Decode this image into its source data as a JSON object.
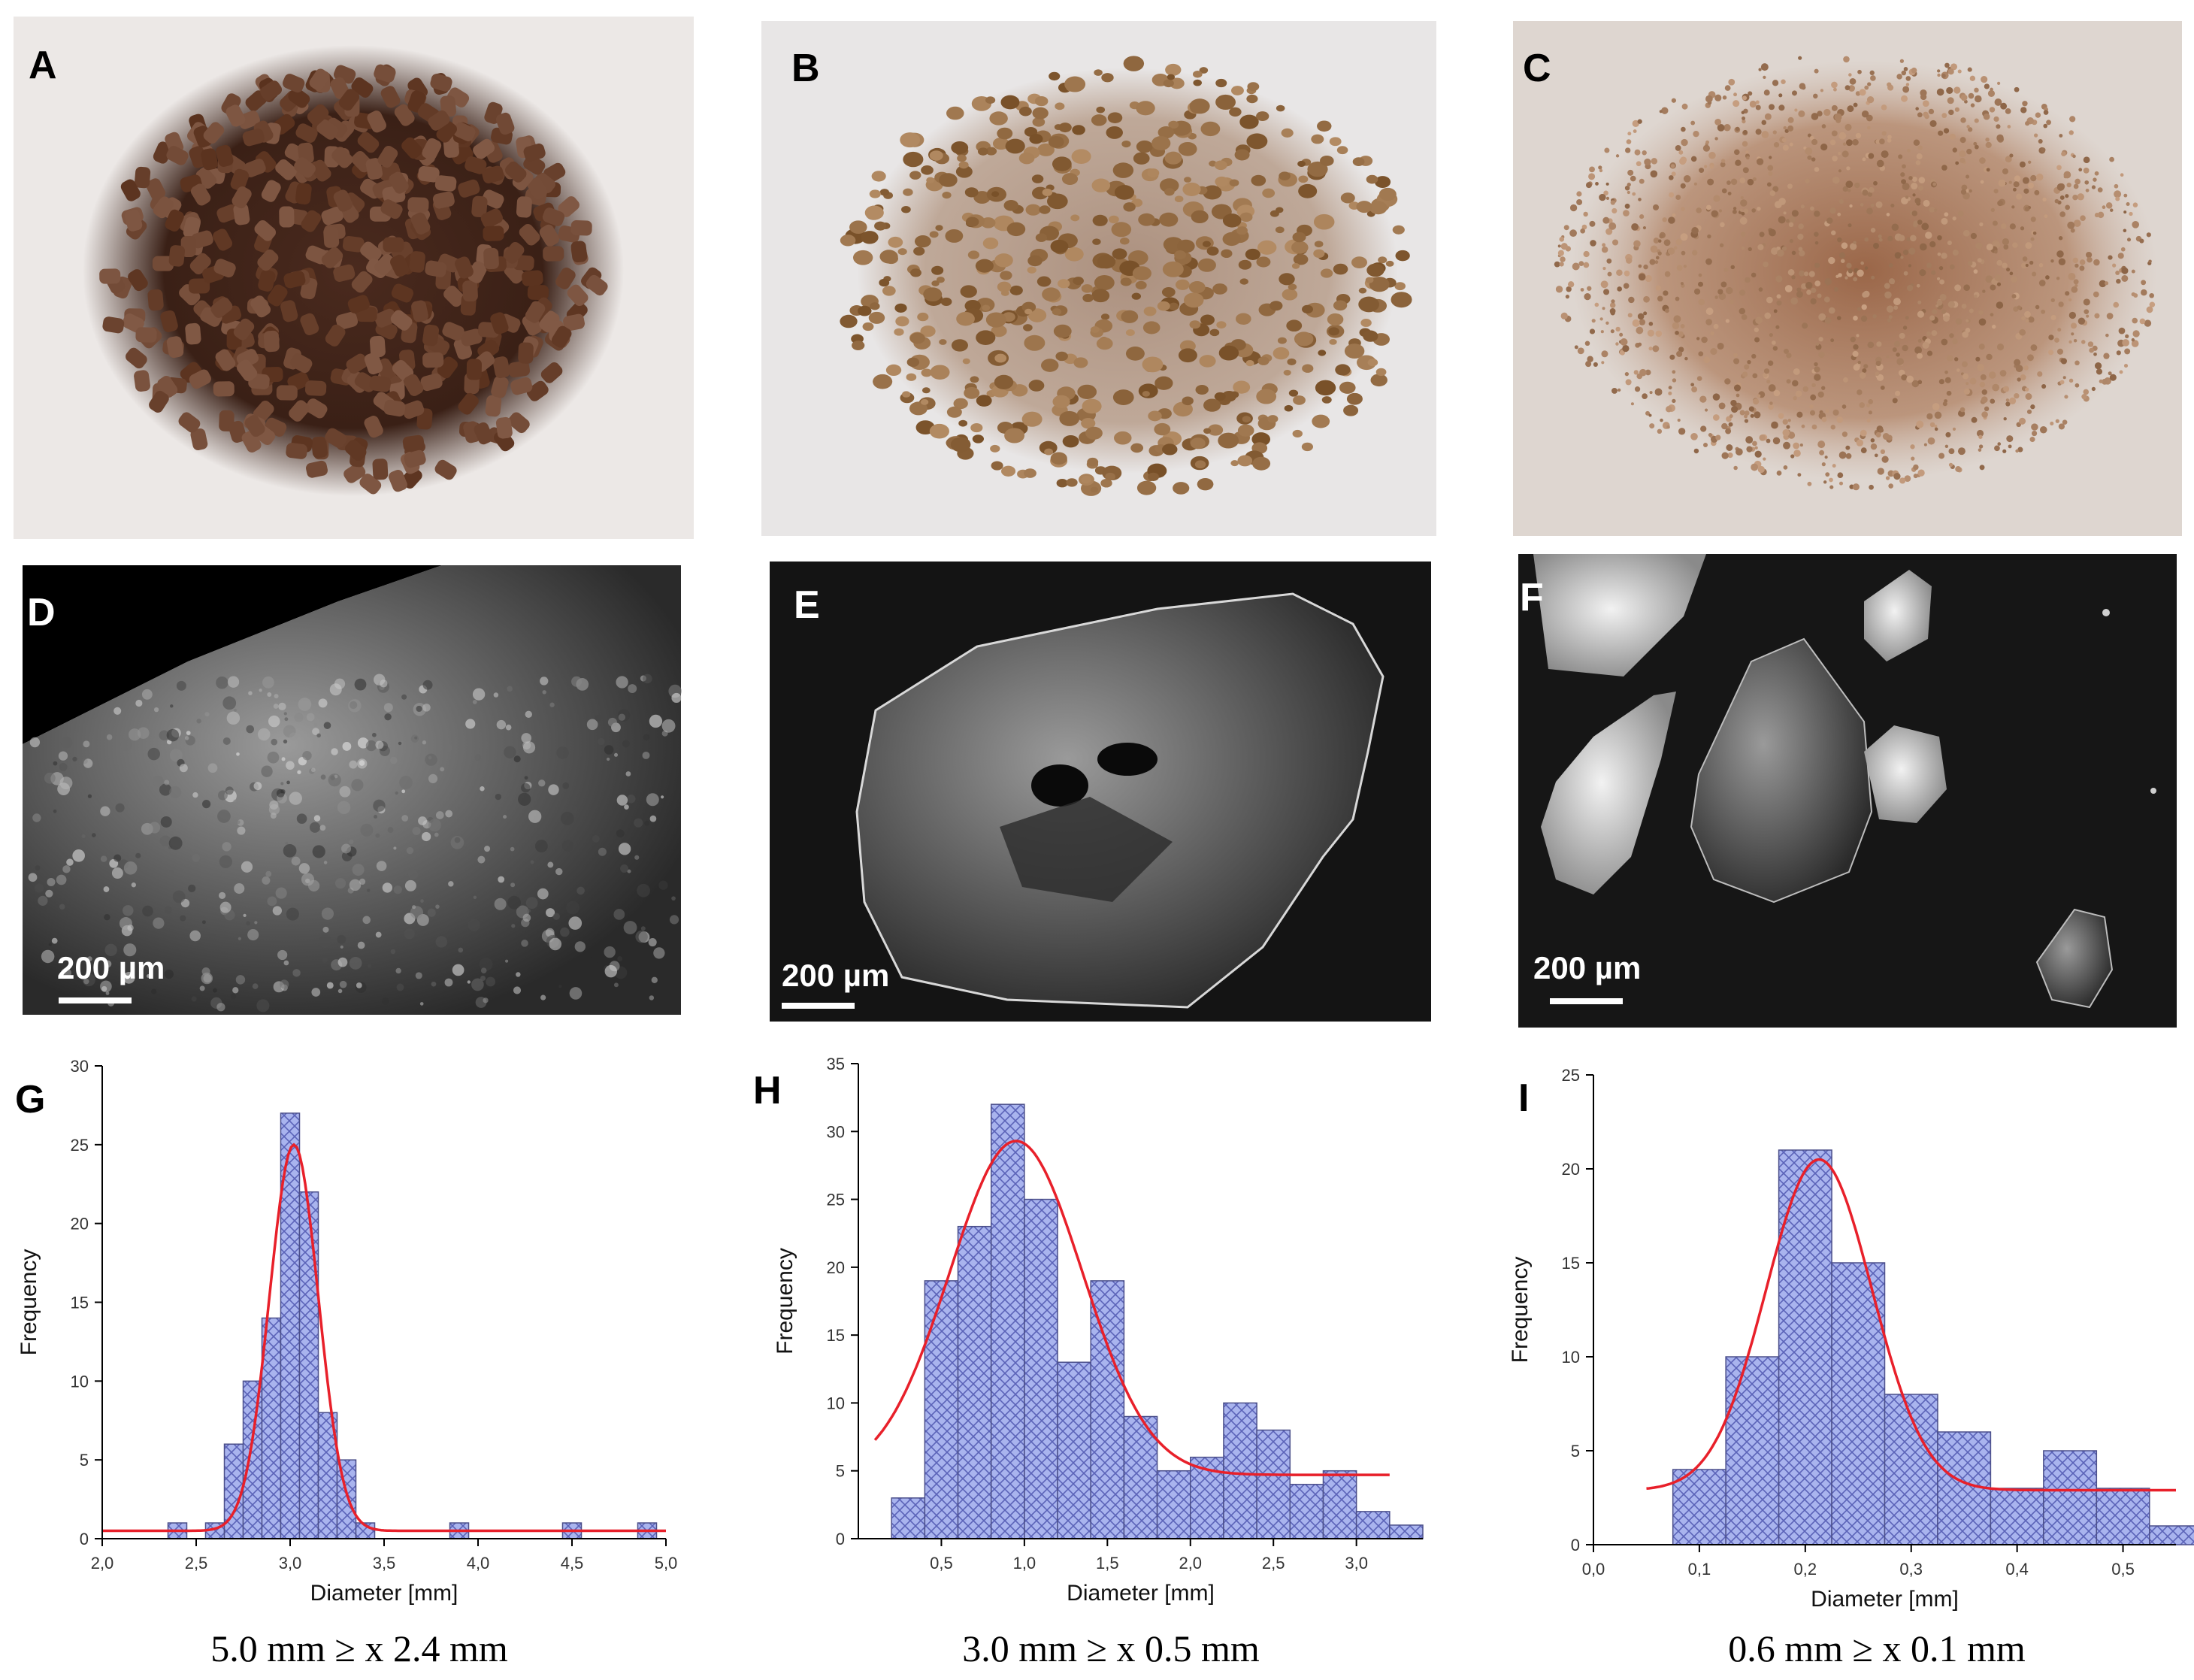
{
  "panel_labels": [
    "A",
    "B",
    "C",
    "D",
    "E",
    "F",
    "G",
    "H",
    "I"
  ],
  "scale_bars": {
    "D": "200 µm",
    "E": "200 µm",
    "F": "200 µm"
  },
  "captions": {
    "G": "5.0 mm ≥ x 2.4 mm",
    "H": "3.0 mm ≥ x 0.5 mm",
    "I": "0.6 mm ≥ x 0.1 mm"
  },
  "colors": {
    "bar_fill": "#a9b4ee",
    "bar_hatch": "#5b63b8",
    "fit_line": "#e8202a",
    "sem_background": "#141414",
    "photo_background": "#ece8e6"
  },
  "chart_data": [
    {
      "type": "bar",
      "panel": "G",
      "xlabel": "Diameter [mm]",
      "ylabel": "Frequency",
      "xlim": [
        2.0,
        5.0
      ],
      "ylim": [
        0,
        30
      ],
      "xticks": [
        "2,0",
        "2,5",
        "3,0",
        "3,5",
        "4,0",
        "4,5",
        "5,0"
      ],
      "yticks": [
        "0",
        "5",
        "10",
        "15",
        "20",
        "25",
        "30"
      ],
      "x": [
        2.4,
        2.6,
        2.7,
        2.8,
        2.9,
        3.0,
        3.1,
        3.2,
        3.3,
        3.4,
        3.9,
        4.5,
        4.9
      ],
      "bin_width": 0.1,
      "values": [
        1,
        1,
        6,
        10,
        14,
        27,
        22,
        8,
        5,
        1,
        1,
        1,
        1
      ],
      "fit": {
        "baseline": 0.5,
        "peak": 25,
        "center": 3.02,
        "width": 0.13
      }
    },
    {
      "type": "bar",
      "panel": "H",
      "xlabel": "Diameter [mm]",
      "ylabel": "Frequency",
      "xlim": [
        0.0,
        3.4
      ],
      "ylim": [
        0,
        35
      ],
      "xticks": [
        "0,5",
        "1,0",
        "1,5",
        "2,0",
        "2,5",
        "3,0"
      ],
      "yticks": [
        "0",
        "5",
        "10",
        "15",
        "20",
        "25",
        "30",
        "35"
      ],
      "x": [
        0.3,
        0.5,
        0.7,
        0.9,
        1.1,
        1.3,
        1.5,
        1.7,
        1.9,
        2.1,
        2.3,
        2.5,
        2.7,
        2.9,
        3.1,
        3.3
      ],
      "bin_width": 0.2,
      "values": [
        3,
        19,
        23,
        32,
        25,
        13,
        19,
        9,
        5,
        6,
        10,
        8,
        4,
        5,
        2,
        1
      ],
      "fit": {
        "baseline": 4.7,
        "peak": 29.3,
        "center": 0.95,
        "width": 0.4
      }
    },
    {
      "type": "bar",
      "panel": "I",
      "xlabel": "Diameter [mm]",
      "ylabel": "Frequency",
      "xlim": [
        0.0,
        0.55
      ],
      "ylim": [
        0,
        25
      ],
      "xticks": [
        "0,0",
        "0,1",
        "0,2",
        "0,3",
        "0,4",
        "0,5"
      ],
      "yticks": [
        "0",
        "5",
        "10",
        "15",
        "20",
        "25"
      ],
      "x": [
        0.1,
        0.15,
        0.2,
        0.25,
        0.3,
        0.35,
        0.4,
        0.45,
        0.5,
        0.55
      ],
      "bin_width": 0.05,
      "values": [
        4,
        10,
        21,
        15,
        8,
        6,
        3,
        5,
        3,
        1
      ],
      "fit": {
        "baseline": 2.9,
        "peak": 20.5,
        "center": 0.213,
        "width": 0.05
      }
    }
  ]
}
